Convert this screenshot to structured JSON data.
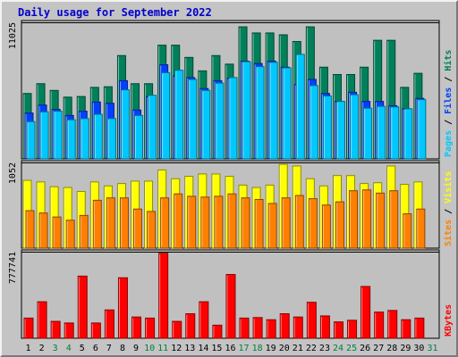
{
  "title": "Daily usage for September 2022",
  "colors": {
    "hits": "#00805a",
    "files": "#0040ff",
    "pages": "#00c8ff",
    "visits": "#ffff00",
    "sites": "#ff8000",
    "kbytes": "#ff0000",
    "weekend_label": "#008040",
    "weekday_label": "#000000"
  },
  "chart_data": [
    {
      "type": "bar",
      "title": "Daily usage for September 2022",
      "categories": [
        "1",
        "2",
        "3",
        "4",
        "5",
        "6",
        "7",
        "8",
        "9",
        "10",
        "11",
        "12",
        "13",
        "14",
        "15",
        "16",
        "17",
        "18",
        "19",
        "20",
        "21",
        "22",
        "23",
        "24",
        "25",
        "26",
        "27",
        "28",
        "29",
        "30",
        "31"
      ],
      "weekend_categories": [
        "3",
        "4",
        "10",
        "11",
        "17",
        "18",
        "24",
        "25",
        "31"
      ],
      "ymax_label": "11025",
      "ylim": [
        0,
        11025
      ],
      "legend": [
        "Pages",
        "Files",
        "Hits"
      ],
      "series": [
        {
          "name": "Hits",
          "values": [
            5350,
            6150,
            5600,
            5050,
            5100,
            5850,
            5900,
            8450,
            6150,
            6150,
            9300,
            9300,
            8300,
            7200,
            8450,
            7750,
            10800,
            10300,
            10300,
            10150,
            9600,
            10800,
            7500,
            6900,
            6900,
            7500,
            9700,
            9700,
            5850,
            7000,
            null
          ]
        },
        {
          "name": "Files",
          "values": [
            3750,
            4400,
            4050,
            3550,
            3900,
            4650,
            4550,
            6400,
            4000,
            5100,
            7700,
            6800,
            6650,
            5750,
            6400,
            6600,
            8000,
            7800,
            8000,
            7500,
            6100,
            6500,
            5350,
            4700,
            5450,
            4700,
            4700,
            4350,
            4100,
            4950,
            null
          ]
        },
        {
          "name": "Pages",
          "values": [
            3050,
            3850,
            3900,
            3200,
            3300,
            3650,
            3300,
            5650,
            3550,
            5200,
            7050,
            7250,
            6500,
            5600,
            6200,
            6650,
            7950,
            7550,
            7900,
            7450,
            8550,
            6000,
            5150,
            4700,
            5250,
            4150,
            4300,
            4250,
            4100,
            4850,
            null
          ]
        }
      ]
    },
    {
      "type": "bar",
      "categories": [
        "1",
        "2",
        "3",
        "4",
        "5",
        "6",
        "7",
        "8",
        "9",
        "10",
        "11",
        "12",
        "13",
        "14",
        "15",
        "16",
        "17",
        "18",
        "19",
        "20",
        "21",
        "22",
        "23",
        "24",
        "25",
        "26",
        "27",
        "28",
        "29",
        "30",
        "31"
      ],
      "ymax_label": "1052",
      "ylim": [
        0,
        1052
      ],
      "legend": [
        "Sites",
        "Visits"
      ],
      "series": [
        {
          "name": "Visits",
          "values": [
            850,
            830,
            770,
            760,
            710,
            830,
            780,
            810,
            840,
            840,
            980,
            870,
            900,
            930,
            930,
            900,
            790,
            760,
            790,
            1050,
            1030,
            870,
            780,
            910,
            910,
            810,
            820,
            1030,
            800,
            830,
            null
          ]
        },
        {
          "name": "Sites",
          "values": [
            470,
            440,
            390,
            350,
            410,
            600,
            630,
            630,
            490,
            460,
            630,
            680,
            650,
            640,
            650,
            680,
            630,
            610,
            560,
            630,
            660,
            620,
            540,
            580,
            720,
            730,
            690,
            720,
            430,
            490,
            null
          ]
        }
      ]
    },
    {
      "type": "bar",
      "categories": [
        "1",
        "2",
        "3",
        "4",
        "5",
        "6",
        "7",
        "8",
        "9",
        "10",
        "11",
        "12",
        "13",
        "14",
        "15",
        "16",
        "17",
        "18",
        "19",
        "20",
        "21",
        "22",
        "23",
        "24",
        "25",
        "26",
        "27",
        "28",
        "29",
        "30",
        "31"
      ],
      "ymax_label": "777741",
      "ylim": [
        0,
        777741
      ],
      "legend": [
        "KBytes"
      ],
      "series": [
        {
          "name": "KBytes",
          "values": [
            185000,
            335000,
            155000,
            140000,
            570000,
            140000,
            260000,
            555000,
            195000,
            185000,
            780000,
            155000,
            225000,
            335000,
            120000,
            585000,
            185000,
            190000,
            170000,
            225000,
            195000,
            330000,
            205000,
            150000,
            165000,
            475000,
            240000,
            255000,
            170000,
            185000,
            null
          ]
        }
      ]
    }
  ]
}
